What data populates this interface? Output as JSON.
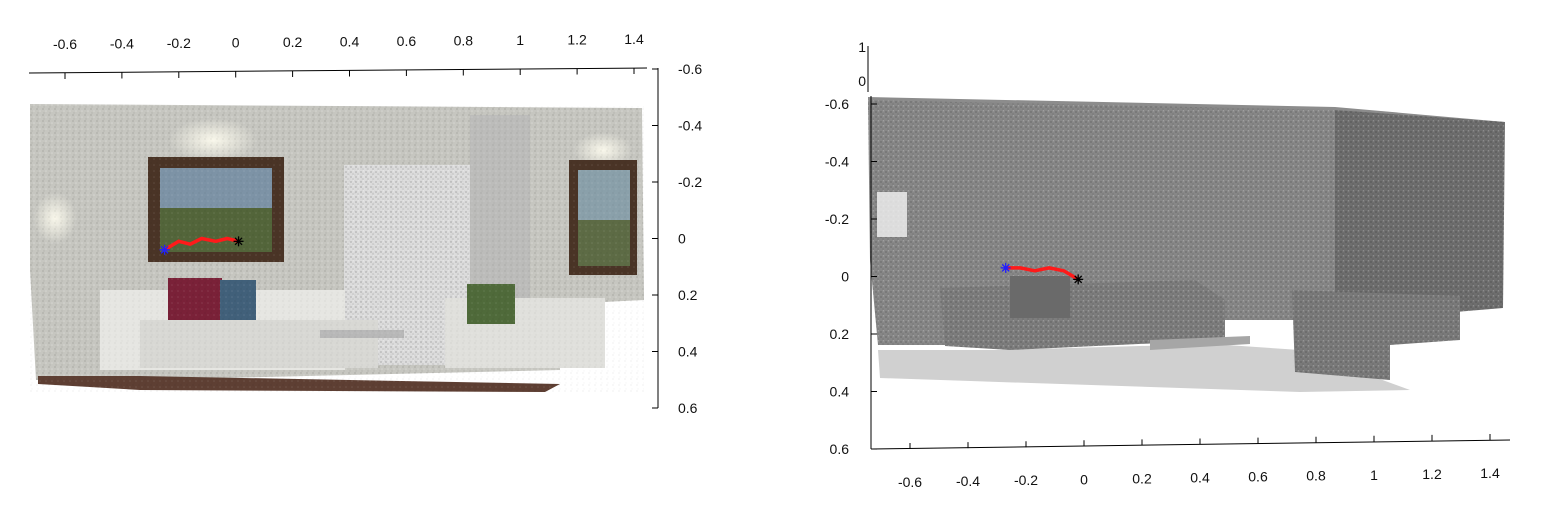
{
  "chart_data": [
    {
      "type": "scatter",
      "subtype": "3d point cloud with trajectory (colored)",
      "title": "",
      "xlabel": "",
      "ylabel": "",
      "x_ticks": [
        "-0.6",
        "-0.4",
        "-0.2",
        "0",
        "0.2",
        "0.4",
        "0.6",
        "0.8",
        "1",
        "1.2",
        "1.4"
      ],
      "y_ticks": [
        "-0.6",
        "-0.4",
        "-0.2",
        "0",
        "0.2",
        "0.4",
        "0.6"
      ],
      "xlim": [
        -0.6,
        1.4
      ],
      "ylim": [
        -0.6,
        0.6
      ],
      "grid": false,
      "trajectory": {
        "color": "#ff1a1a",
        "start_marker_color": "#2020ff",
        "end_marker_color": "#000000",
        "x": [
          -0.25,
          -0.2,
          -0.16,
          -0.12,
          -0.07,
          -0.03,
          0.01
        ],
        "y": [
          0.04,
          0.01,
          0.02,
          0.0,
          0.01,
          0.0,
          0.01
        ]
      }
    },
    {
      "type": "scatter",
      "subtype": "3d point cloud with trajectory (grayscale)",
      "title": "",
      "xlabel": "",
      "ylabel": "",
      "x_ticks": [
        "-0.6",
        "-0.4",
        "-0.2",
        "0",
        "0.2",
        "0.4",
        "0.6",
        "0.8",
        "1",
        "1.2",
        "1.4"
      ],
      "y_ticks": [
        "-0.6",
        "-0.4",
        "-0.2",
        "0",
        "0.2",
        "0.4",
        "0.6"
      ],
      "z_ticks": [
        "1",
        "0"
      ],
      "xlim": [
        -0.6,
        1.4
      ],
      "ylim": [
        -0.6,
        0.6
      ],
      "grid": false,
      "trajectory": {
        "color": "#ff1a1a",
        "start_marker_color": "#2020ff",
        "end_marker_color": "#000000",
        "x": [
          -0.27,
          -0.22,
          -0.17,
          -0.12,
          -0.07,
          -0.02
        ],
        "y": [
          -0.03,
          -0.03,
          -0.02,
          -0.03,
          -0.02,
          0.01
        ]
      }
    }
  ]
}
